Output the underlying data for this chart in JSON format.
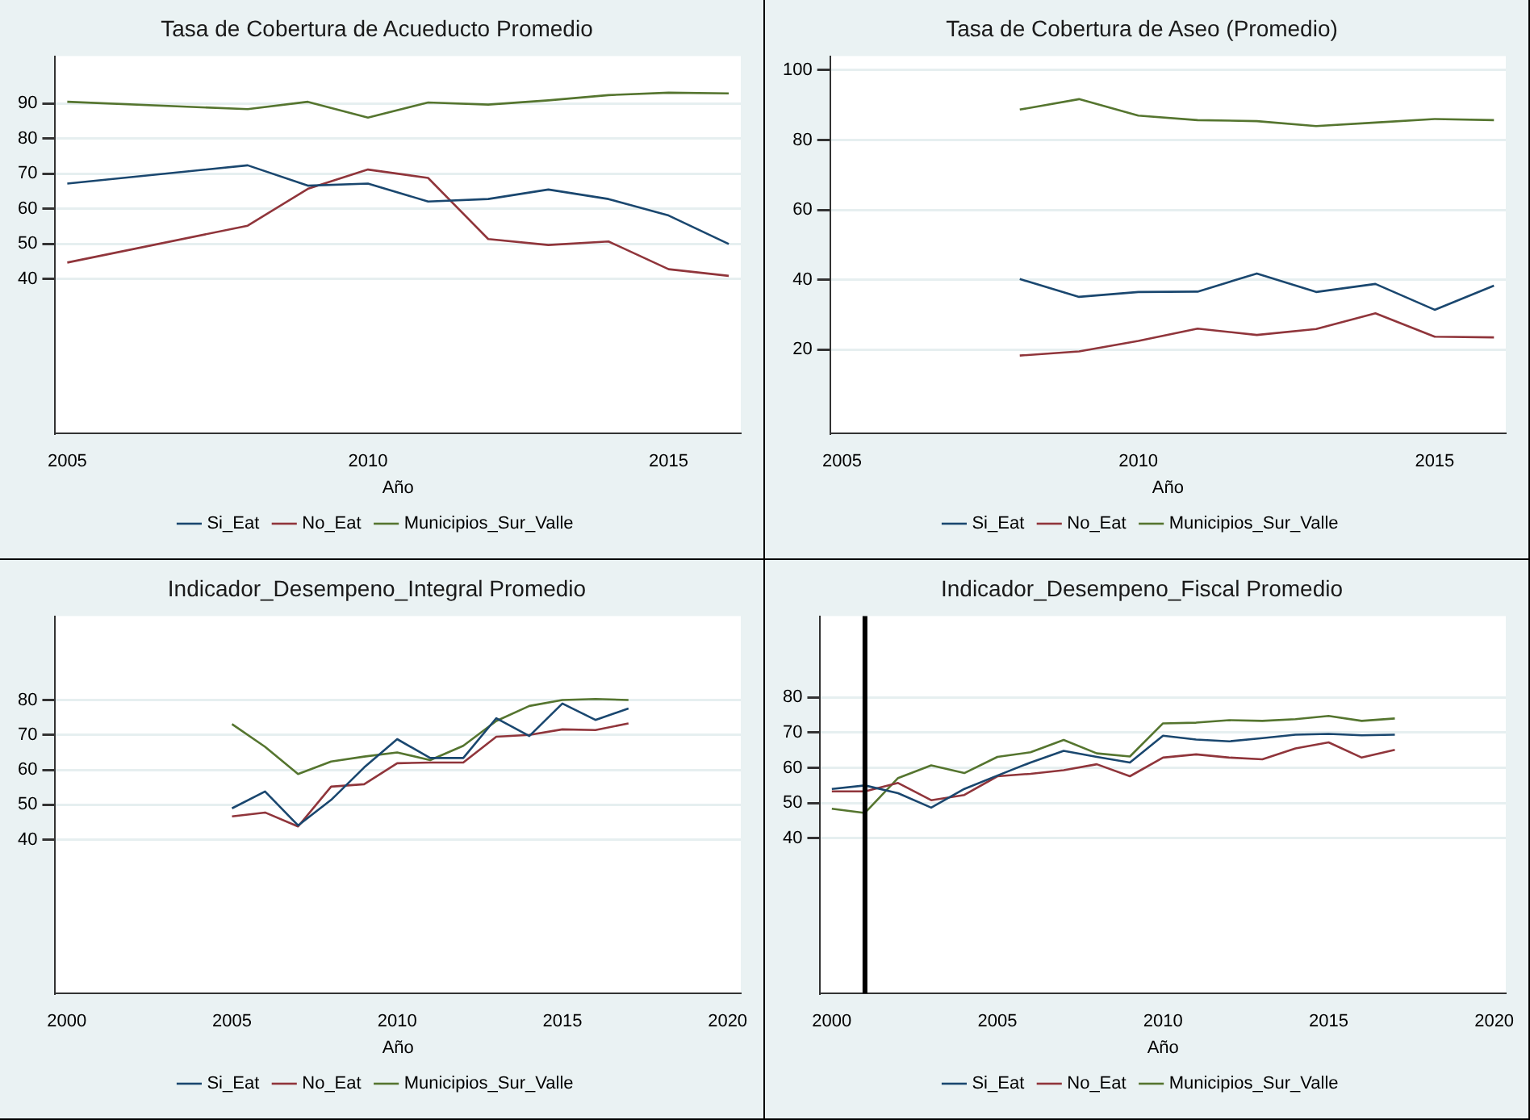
{
  "chart_data": [
    {
      "type": "line",
      "title": "Tasa de Cobertura de Acueducto Promedio",
      "xlabel": "Año",
      "x": [
        2005,
        2008,
        2009,
        2010,
        2011,
        2012,
        2013,
        2014,
        2015,
        2016
      ],
      "xlim": [
        2004.8,
        2016.2
      ],
      "xticks": [
        2005,
        2010,
        2015
      ],
      "ylim": [
        -4,
        103.5
      ],
      "yticks": [
        40,
        50,
        60,
        70,
        80,
        90
      ],
      "grid": "y",
      "legend": "bottom",
      "marker": "none",
      "series": [
        {
          "name": "Si_Eat",
          "color": "#1a476f",
          "values": [
            67.2,
            72.4,
            66.6,
            67.2,
            62.1,
            62.8,
            65.5,
            62.8,
            58.1,
            50
          ]
        },
        {
          "name": "No_Eat",
          "color": "#90353b",
          "values": [
            44.7,
            55.2,
            65.7,
            71.2,
            68.8,
            51.4,
            49.7,
            50.7,
            42.8,
            40.9
          ]
        },
        {
          "name": "Municipios_Sur_Valle",
          "color": "#55752f",
          "values": [
            90.5,
            88.4,
            90.5,
            86,
            90.3,
            89.7,
            90.9,
            92.4,
            93.1,
            92.9
          ]
        }
      ]
    },
    {
      "type": "line",
      "title": "Tasa de Cobertura de Aseo (Promedio)",
      "xlabel": "Año",
      "x": [
        2008,
        2009,
        2010,
        2011,
        2012,
        2013,
        2014,
        2015,
        2016
      ],
      "xlim": [
        2004.8,
        2016.2
      ],
      "xticks": [
        2005,
        2010,
        2015
      ],
      "ylim": [
        -4,
        104
      ],
      "yticks": [
        20,
        40,
        60,
        80,
        100
      ],
      "grid": "y",
      "legend": "bottom",
      "marker": "none",
      "series": [
        {
          "name": "Si_Eat",
          "color": "#1a476f",
          "values": [
            40.2,
            35.1,
            36.5,
            36.6,
            41.8,
            36.5,
            38.8,
            31.4,
            38.3
          ]
        },
        {
          "name": "No_Eat",
          "color": "#90353b",
          "values": [
            18.3,
            19.5,
            22.5,
            26,
            24.2,
            25.9,
            30.4,
            23.7,
            23.5
          ]
        },
        {
          "name": "Municipios_Sur_Valle",
          "color": "#55752f",
          "values": [
            88.7,
            91.7,
            87,
            85.7,
            85.4,
            84,
            85,
            86,
            85.7
          ]
        }
      ]
    },
    {
      "type": "line",
      "title": "Indicador_Desempeno_Integral Promedio",
      "xlabel": "Año",
      "x": [
        2005,
        2006,
        2007,
        2008,
        2009,
        2010,
        2011,
        2012,
        2013,
        2014,
        2015,
        2016,
        2017
      ],
      "xlim": [
        1999.65,
        2020.4
      ],
      "xticks": [
        2000,
        2005,
        2010,
        2015,
        2020
      ],
      "ylim": [
        -4,
        104
      ],
      "yticks": [
        40,
        50,
        60,
        70,
        80
      ],
      "grid": "y",
      "legend": "bottom",
      "marker": "none",
      "series": [
        {
          "name": "Si_Eat",
          "color": "#1a476f",
          "values": [
            49,
            53.8,
            44.1,
            51.4,
            60.7,
            68.8,
            63.4,
            63.4,
            74.8,
            69.7,
            79,
            74.3,
            77.6
          ]
        },
        {
          "name": "No_Eat",
          "color": "#90353b",
          "values": [
            46.7,
            47.8,
            43.8,
            55.2,
            55.9,
            61.9,
            62.1,
            62.1,
            69.5,
            70,
            71.6,
            71.4,
            73.3
          ]
        },
        {
          "name": "Municipios_Sur_Valle",
          "color": "#55752f",
          "values": [
            73.1,
            66.6,
            58.8,
            62.4,
            63.8,
            65,
            62.8,
            66.9,
            74,
            78.3,
            80,
            80.3,
            80
          ]
        }
      ]
    },
    {
      "type": "line",
      "title": "Indicador_Desempeno_Fiscal Promedio",
      "xlabel": "Año",
      "x": [
        2000,
        2001,
        2002,
        2003,
        2004,
        2005,
        2006,
        2007,
        2008,
        2009,
        2010,
        2011,
        2012,
        2013,
        2014,
        2015,
        2016,
        2017
      ],
      "xlim": [
        1999.65,
        2020.35
      ],
      "xticks": [
        2000,
        2005,
        2010,
        2015,
        2020
      ],
      "ylim": [
        -4,
        103
      ],
      "yticks": [
        40,
        50,
        60,
        70,
        80
      ],
      "grid": "y",
      "legend": "bottom",
      "marker": "none",
      "ref_lines": [
        {
          "axis": "x",
          "value": 2001,
          "color": "#000000"
        }
      ],
      "series": [
        {
          "name": "Si_Eat",
          "color": "#1a476f",
          "values": [
            54,
            55,
            52.8,
            48.7,
            54,
            57.8,
            61.5,
            64.8,
            63.1,
            61.5,
            69.1,
            68,
            67.5,
            68.4,
            69.4,
            69.6,
            69.2,
            69.4
          ]
        },
        {
          "name": "No_Eat",
          "color": "#90353b",
          "values": [
            53.3,
            53.3,
            55.7,
            50.8,
            52.3,
            57.6,
            58.3,
            59.3,
            61,
            57.6,
            62.9,
            63.8,
            62.9,
            62.4,
            65.5,
            67.2,
            62.9,
            65.1
          ]
        },
        {
          "name": "Municipios_Sur_Valle",
          "color": "#55752f",
          "values": [
            48.4,
            47.2,
            57.1,
            60.7,
            58.5,
            63.1,
            64.4,
            67.9,
            64.1,
            63.2,
            72.6,
            72.8,
            73.5,
            73.3,
            73.8,
            74.7,
            73.3,
            74
          ]
        }
      ]
    }
  ]
}
